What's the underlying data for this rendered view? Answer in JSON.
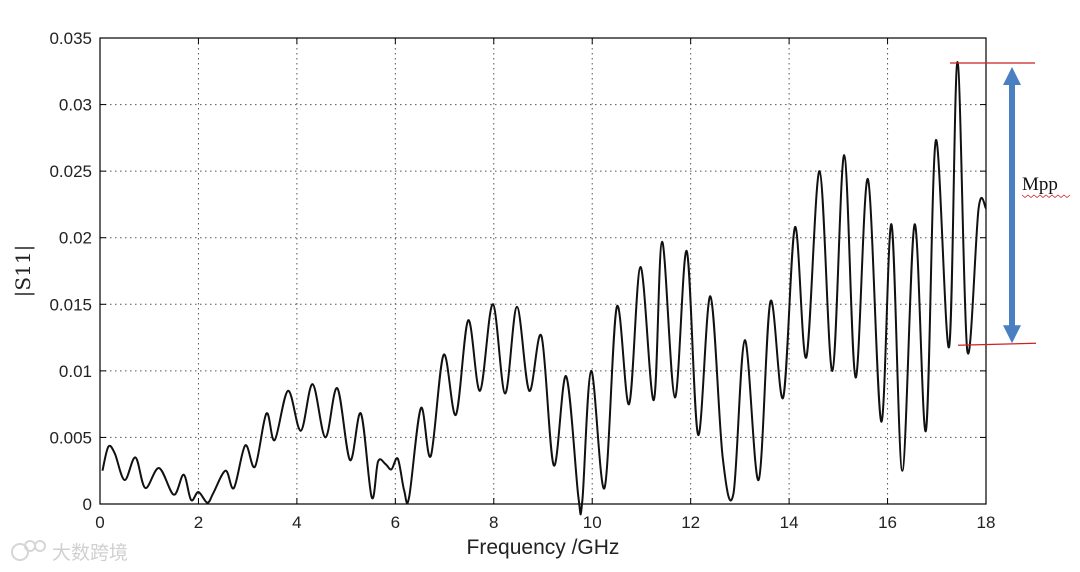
{
  "chart_data": {
    "type": "line",
    "xlabel": "Frequency /GHz",
    "ylabel": "|S11|",
    "xlim": [
      0,
      18
    ],
    "ylim": [
      0,
      0.035
    ],
    "xticks": [
      0,
      2,
      4,
      6,
      8,
      10,
      12,
      14,
      16,
      18
    ],
    "yticks": [
      0,
      0.005,
      0.01,
      0.015,
      0.02,
      0.025,
      0.03,
      0.035
    ],
    "ytick_labels": [
      "0",
      "0.005",
      "0.01",
      "0.015",
      "0.02",
      "0.025",
      "0.03",
      "0.035"
    ],
    "grid": true,
    "series": [
      {
        "color": "#111111",
        "x": [
          0.05,
          0.17,
          0.3,
          0.5,
          0.72,
          0.92,
          1.2,
          1.5,
          1.7,
          1.85,
          2.0,
          2.18,
          2.3,
          2.55,
          2.72,
          2.95,
          3.15,
          3.38,
          3.55,
          3.82,
          4.08,
          4.32,
          4.58,
          4.82,
          5.08,
          5.3,
          5.52,
          5.65,
          5.8,
          5.92,
          6.05,
          6.18,
          6.28,
          6.52,
          6.72,
          6.98,
          7.23,
          7.48,
          7.72,
          7.98,
          8.23,
          8.47,
          8.72,
          8.97,
          9.22,
          9.47,
          9.72,
          9.8,
          9.98,
          10.25,
          10.5,
          10.75,
          10.98,
          11.25,
          11.42,
          11.68,
          11.92,
          12.15,
          12.4,
          12.65,
          12.87,
          13.1,
          13.38,
          13.62,
          13.88,
          14.12,
          14.35,
          14.62,
          14.88,
          15.12,
          15.35,
          15.6,
          15.87,
          16.08,
          16.3,
          16.55,
          16.78,
          16.98,
          17.25,
          17.42,
          17.62,
          17.85,
          18.0
        ],
        "y": [
          0.0025,
          0.0043,
          0.0038,
          0.0018,
          0.0035,
          0.0012,
          0.0027,
          0.0007,
          0.0022,
          0.0003,
          0.0009,
          0.0001,
          0.0008,
          0.0025,
          0.0012,
          0.0044,
          0.0028,
          0.0068,
          0.0048,
          0.0085,
          0.0055,
          0.009,
          0.005,
          0.0087,
          0.0033,
          0.0068,
          0.0005,
          0.0032,
          0.003,
          0.0026,
          0.0034,
          0.001,
          0.0005,
          0.0072,
          0.0036,
          0.0112,
          0.0067,
          0.0138,
          0.0085,
          0.015,
          0.0083,
          0.0148,
          0.0085,
          0.0126,
          0.0029,
          0.0096,
          0.0005,
          0.0003,
          0.01,
          0.0012,
          0.0148,
          0.0075,
          0.0178,
          0.0078,
          0.0197,
          0.008,
          0.019,
          0.0052,
          0.0156,
          0.0035,
          0.0008,
          0.0123,
          0.0018,
          0.0152,
          0.008,
          0.0208,
          0.011,
          0.025,
          0.01,
          0.0262,
          0.0095,
          0.0244,
          0.0062,
          0.021,
          0.0025,
          0.021,
          0.0055,
          0.0273,
          0.0118,
          0.0332,
          0.0115,
          0.0222,
          0.0222
        ]
      }
    ],
    "annotations": [
      {
        "text": "Mpp",
        "color": "#4a7fc1",
        "marker_color": "#cc2222",
        "from_y": 0.012,
        "to_y": 0.0332
      }
    ]
  },
  "watermark": "大数跨境"
}
